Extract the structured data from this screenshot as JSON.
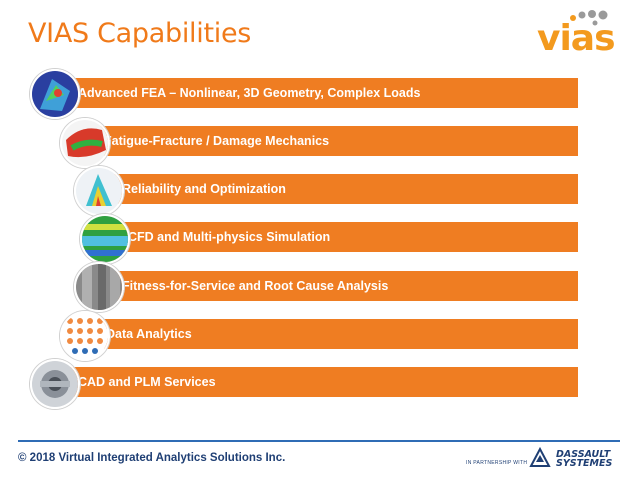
{
  "slide": {
    "title": "VIAS Capabilities",
    "logo_text": "vias",
    "footer": "© 2018 Virtual Integrated Analytics Solutions Inc.",
    "partner_label": "IN PARTNERSHIP WITH",
    "partner_name_line1": "DASSAULT",
    "partner_name_line2": "SYSTEMES"
  },
  "capabilities": [
    {
      "label": "Advanced FEA – Nonlinear, 3D Geometry, Complex Loads",
      "icon": "fea-mesh-icon"
    },
    {
      "label": "Fatigue-Fracture / Damage Mechanics",
      "icon": "fracture-icon"
    },
    {
      "label": "Reliability and Optimization",
      "icon": "reliability-plot-icon"
    },
    {
      "label": "CFD and Multi-physics Simulation",
      "icon": "cfd-flow-icon"
    },
    {
      "label": "Fitness-for-Service and Root Cause Analysis",
      "icon": "pipe-inspection-icon"
    },
    {
      "label": "Data Analytics",
      "icon": "data-dots-icon"
    },
    {
      "label": "CAD and PLM Services",
      "icon": "cad-part-icon"
    }
  ],
  "colors": {
    "accent": "#ef7d22",
    "title": "#f07a1a",
    "footer": "#1f3f74",
    "rule": "#2f6cb5"
  }
}
